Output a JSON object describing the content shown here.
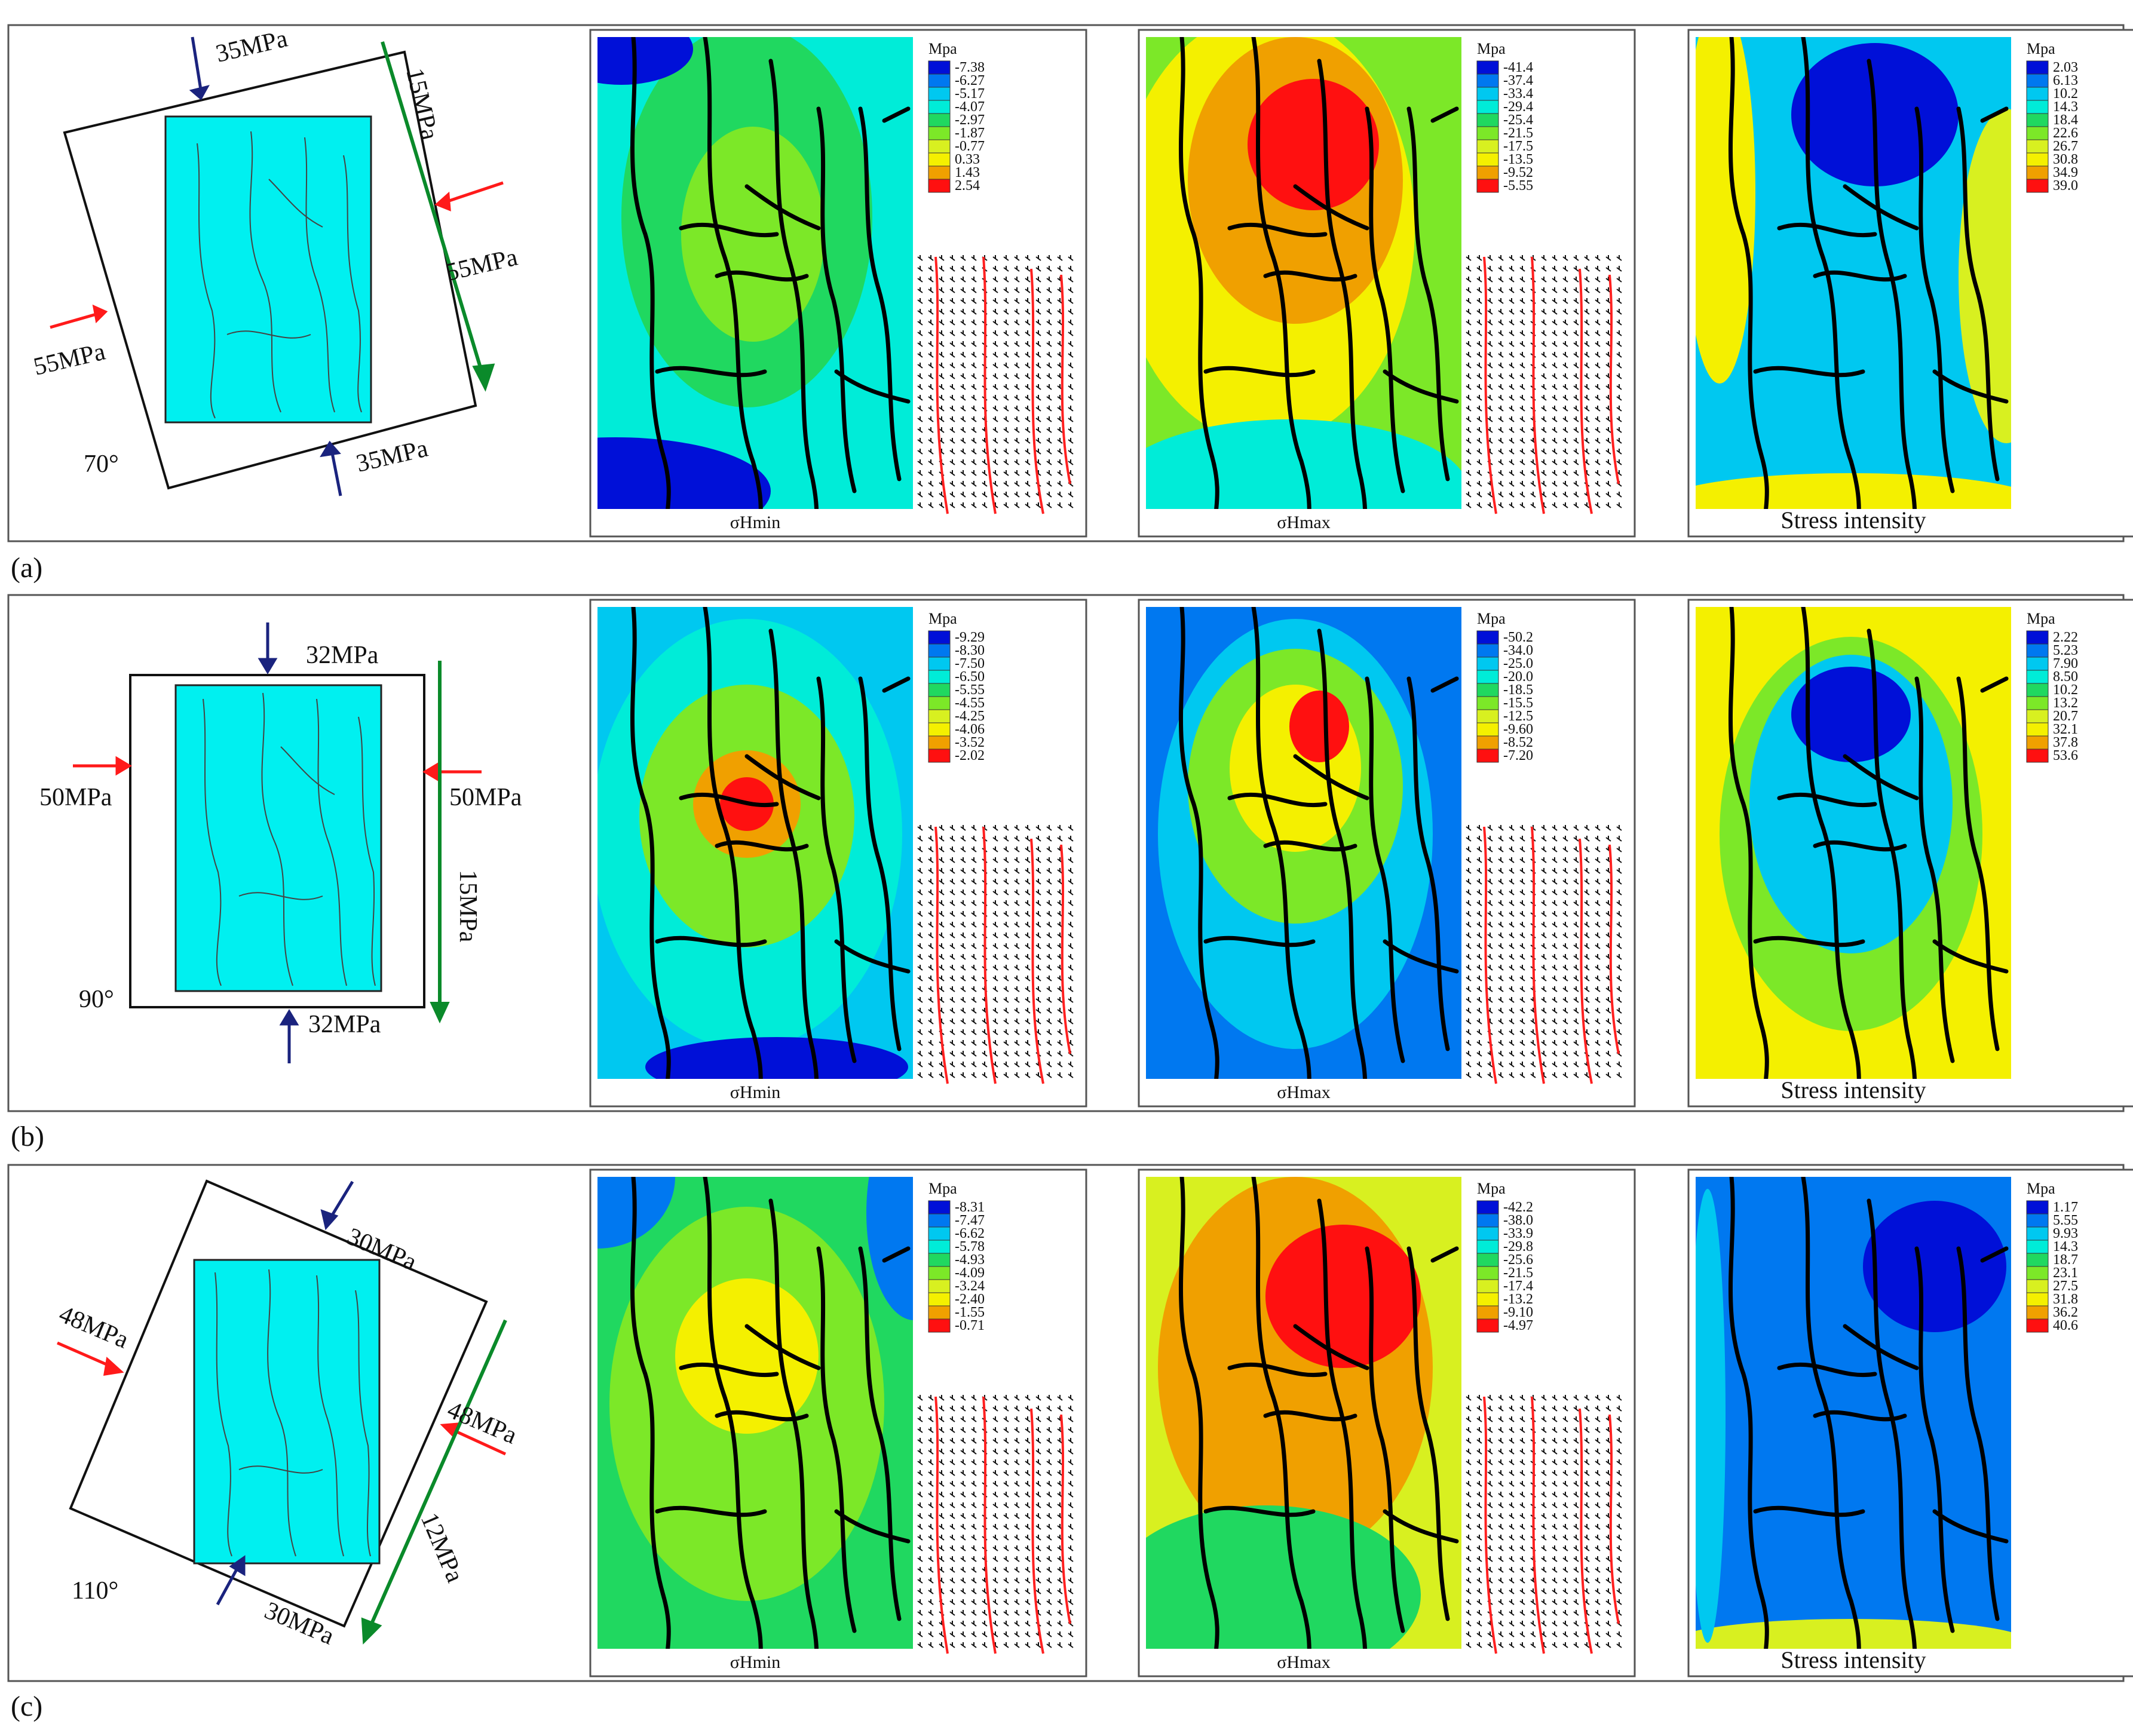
{
  "unit_label": "Mpa",
  "colors": {
    "ramp": [
      "#0010d8",
      "#0078f0",
      "#00c8f0",
      "#00ecd8",
      "#20d860",
      "#7ce828",
      "#d8f020",
      "#f4f000",
      "#f0a000",
      "#ff1010"
    ],
    "compression_arrow": "#1a237e",
    "tension_arrow": "#ff1a1a",
    "shear_arrow": "#0a8a2a",
    "model_fill": "#00f0f0",
    "fault": "#000000",
    "vector_fault": "#ff2020"
  },
  "icons": [
    "compression-arrow-icon",
    "tension-arrow-icon",
    "shear-arrow-icon"
  ],
  "panels": [
    {
      "id": "a",
      "caption": "(a)",
      "angle": "70°",
      "loads": {
        "comp1": "35MPa",
        "comp2": "35MPa",
        "lateral1": "55MPa",
        "lateral2": "55MPa",
        "shear": "15MPa"
      },
      "maps": [
        {
          "title": "σHmin",
          "unit": "Mpa",
          "legend": [
            "-7.38",
            "-6.27",
            "-5.17",
            "-4.07",
            "-2.97",
            "-1.87",
            "-0.77",
            "0.33",
            "1.43",
            "2.54"
          ]
        },
        {
          "title": "σHmax",
          "unit": "Mpa",
          "legend": [
            "-41.4",
            "-37.4",
            "-33.4",
            "-29.4",
            "-25.4",
            "-21.5",
            "-17.5",
            "-13.5",
            "-9.52",
            "-5.55"
          ]
        },
        {
          "title": "Stress intensity",
          "unit": "Mpa",
          "legend": [
            "2.03",
            "6.13",
            "10.2",
            "14.3",
            "18.4",
            "22.6",
            "26.7",
            "30.8",
            "34.9",
            "39.0"
          ]
        }
      ]
    },
    {
      "id": "b",
      "caption": "(b)",
      "angle": "90°",
      "loads": {
        "comp1": "32MPa",
        "comp2": "32MPa",
        "lateral1": "50MPa",
        "lateral2": "50MPa",
        "shear": "15MPa"
      },
      "maps": [
        {
          "title": "σHmin",
          "unit": "Mpa",
          "legend": [
            "-9.29",
            "-8.30",
            "-7.50",
            "-6.50",
            "-5.55",
            "-4.55",
            "-4.25",
            "-4.06",
            "-3.52",
            "-2.02"
          ]
        },
        {
          "title": "σHmax",
          "unit": "Mpa",
          "legend": [
            "-50.2",
            "-34.0",
            "-25.0",
            "-20.0",
            "-18.5",
            "-15.5",
            "-12.5",
            "-9.60",
            "-8.52",
            "-7.20"
          ]
        },
        {
          "title": "Stress intensity",
          "unit": "Mpa",
          "legend": [
            "2.22",
            "5.23",
            "7.90",
            "8.50",
            "10.2",
            "13.2",
            "20.7",
            "32.1",
            "37.8",
            "53.6"
          ]
        }
      ]
    },
    {
      "id": "c",
      "caption": "(c)",
      "angle": "110°",
      "loads": {
        "comp1": "30MPa",
        "comp2": "30MPa",
        "lateral1": "48MPa",
        "lateral2": "48MPa",
        "shear": "12MPa"
      },
      "maps": [
        {
          "title": "σHmin",
          "unit": "Mpa",
          "legend": [
            "-8.31",
            "-7.47",
            "-6.62",
            "-5.78",
            "-4.93",
            "-4.09",
            "-3.24",
            "-2.40",
            "-1.55",
            "-0.71"
          ]
        },
        {
          "title": "σHmax",
          "unit": "Mpa",
          "legend": [
            "-42.2",
            "-38.0",
            "-33.9",
            "-29.8",
            "-25.6",
            "-21.5",
            "-17.4",
            "-13.2",
            "-9.10",
            "-4.97"
          ]
        },
        {
          "title": "Stress intensity",
          "unit": "Mpa",
          "legend": [
            "1.17",
            "5.55",
            "9.93",
            "14.3",
            "18.7",
            "23.1",
            "27.5",
            "31.8",
            "36.2",
            "40.6"
          ]
        }
      ]
    }
  ]
}
